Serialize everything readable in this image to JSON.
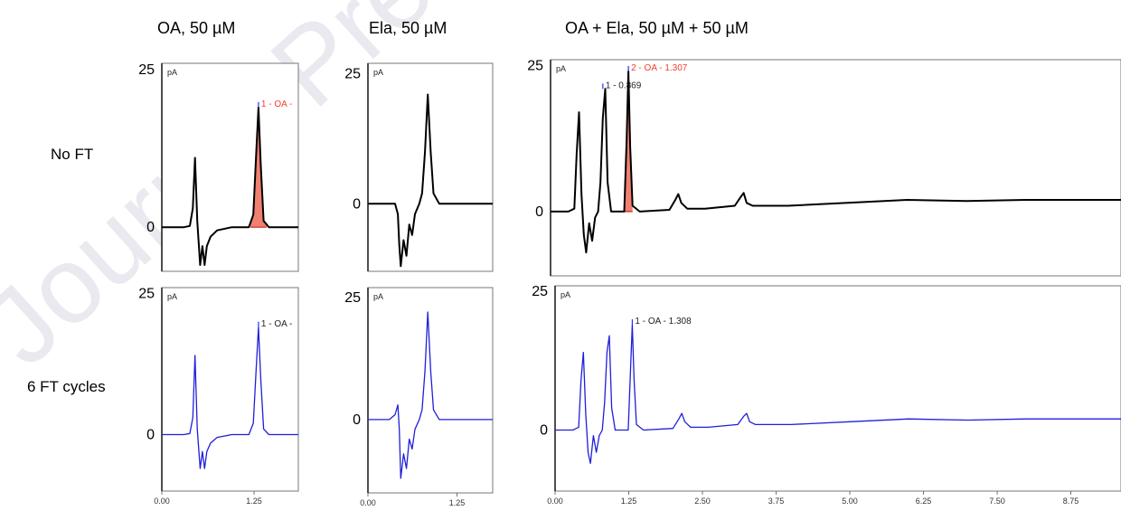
{
  "column_titles": [
    "OA, 50 µM",
    "Ela, 50 µM",
    "OA + Ela, 50 µM + 50 µM"
  ],
  "row_labels": [
    "No FT",
    "6 FT cycles"
  ],
  "watermark": "Journal Pre-proof",
  "colors": {
    "no_ft_trace": "#000000",
    "ft_trace": "#1f1fdb",
    "peak_fill": "#f08070",
    "peak_label_selected": "#f04030",
    "baseline_mark": "#cc2222",
    "marker_tick": "#2233ff"
  },
  "chart_data": [
    {
      "type": "line",
      "panel": "OA, 50 µM / No FT",
      "unit": "pA",
      "ytick_labels": [
        "25",
        "0"
      ],
      "ylim": [
        -7,
        26
      ],
      "xlim": [
        0,
        1.85
      ],
      "series": [
        {
          "x": [
            0.0,
            0.3,
            0.38,
            0.42,
            0.45,
            0.48,
            0.52,
            0.55,
            0.58,
            0.61,
            0.66,
            0.75,
            0.95,
            1.18,
            1.24,
            1.28,
            1.31,
            1.34,
            1.38,
            1.45,
            1.85
          ],
          "y": [
            0,
            0,
            0.2,
            3,
            11,
            1,
            -6,
            -3,
            -6,
            -3,
            -1.5,
            -0.5,
            0,
            0,
            2,
            12,
            19,
            10,
            1,
            0,
            0
          ]
        }
      ],
      "peak_labels": [
        {
          "text": "1 - OA -",
          "x": 1.31,
          "y": 19,
          "selected": true
        }
      ],
      "shaded_peaks": [
        [
          1.2,
          1.42
        ]
      ]
    },
    {
      "type": "line",
      "panel": "Ela, 50 µM / No FT",
      "unit": "pA",
      "ytick_labels": [
        "25",
        "0"
      ],
      "ylim": [
        -13,
        27
      ],
      "xlim": [
        0,
        1.75
      ],
      "series": [
        {
          "x": [
            0.0,
            0.3,
            0.38,
            0.42,
            0.44,
            0.46,
            0.5,
            0.54,
            0.58,
            0.62,
            0.66,
            0.72,
            0.76,
            0.8,
            0.84,
            0.88,
            0.92,
            1.0,
            1.2,
            1.75
          ],
          "y": [
            0,
            0,
            0,
            -2,
            -8,
            -12,
            -7,
            -10,
            -4,
            -6,
            -2,
            0,
            2,
            10,
            21,
            10,
            2,
            0,
            0,
            0
          ]
        }
      ],
      "peak_labels": [],
      "shaded_peaks": []
    },
    {
      "type": "line",
      "panel": "OA + Ela, 50 µM + 50 µM / No FT",
      "unit": "pA",
      "ytick_labels": [
        "25",
        "0"
      ],
      "ylim": [
        -11,
        26
      ],
      "xlim": [
        0,
        9.6
      ],
      "series": [
        {
          "x": [
            0.0,
            0.3,
            0.4,
            0.44,
            0.48,
            0.52,
            0.56,
            0.6,
            0.65,
            0.7,
            0.75,
            0.8,
            0.84,
            0.88,
            0.92,
            0.96,
            1.02,
            1.12,
            1.24,
            1.28,
            1.31,
            1.34,
            1.38,
            1.5,
            2.0,
            2.1,
            2.15,
            2.2,
            2.3,
            2.6,
            3.1,
            3.2,
            3.25,
            3.3,
            3.4,
            4.0,
            5.0,
            6.0,
            7.0,
            8.0,
            9.6
          ],
          "y": [
            0,
            0,
            0.5,
            10,
            17,
            3,
            -4,
            -7,
            -2,
            -5,
            -1,
            0,
            5,
            16,
            21,
            5,
            0,
            0,
            0,
            12,
            24,
            11,
            1,
            0,
            0.3,
            2,
            3,
            1.5,
            0.5,
            0.5,
            1,
            2.5,
            3.2,
            1.5,
            1,
            1,
            1.5,
            2,
            1.8,
            2,
            2
          ]
        }
      ],
      "peak_labels": [
        {
          "text": "1 - 0.869",
          "x": 0.88,
          "y": 21,
          "selected": false
        },
        {
          "text": "2 - OA - 1.307",
          "x": 1.31,
          "y": 24,
          "selected": true
        }
      ],
      "shaded_peaks": [
        [
          1.24,
          1.38
        ]
      ]
    },
    {
      "type": "line",
      "panel": "OA, 50 µM / 6 FT cycles",
      "unit": "pA",
      "ytick_labels": [
        "25",
        "0"
      ],
      "ylim": [
        -10,
        26
      ],
      "xtick_labels": [
        "0.00",
        "1.25"
      ],
      "xlim": [
        0,
        1.85
      ],
      "series": [
        {
          "x": [
            0.0,
            0.3,
            0.38,
            0.42,
            0.45,
            0.48,
            0.52,
            0.55,
            0.58,
            0.61,
            0.66,
            0.75,
            0.95,
            1.18,
            1.24,
            1.28,
            1.31,
            1.34,
            1.38,
            1.45,
            1.85
          ],
          "y": [
            0,
            0,
            0.2,
            3,
            14,
            1,
            -6,
            -3,
            -6,
            -3,
            -1.5,
            -0.5,
            0,
            0,
            2,
            12,
            19,
            10,
            1,
            0,
            0
          ]
        }
      ],
      "peak_labels": [
        {
          "text": "1 - OA -",
          "x": 1.31,
          "y": 19,
          "selected": false
        }
      ],
      "shaded_peaks": []
    },
    {
      "type": "line",
      "panel": "Ela, 50 µM / 6 FT cycles",
      "unit": "pA",
      "ytick_labels": [
        "25",
        "0"
      ],
      "ylim": [
        -15,
        27
      ],
      "xtick_labels": [
        "0.00",
        "1.25"
      ],
      "xlim": [
        0,
        1.75
      ],
      "series": [
        {
          "x": [
            0.0,
            0.3,
            0.38,
            0.42,
            0.44,
            0.46,
            0.5,
            0.54,
            0.58,
            0.62,
            0.66,
            0.72,
            0.76,
            0.8,
            0.84,
            0.88,
            0.92,
            1.0,
            1.2,
            1.75
          ],
          "y": [
            0,
            0,
            1,
            3,
            -2,
            -12,
            -7,
            -10,
            -4,
            -6,
            -2,
            0,
            2,
            10,
            22,
            10,
            2,
            0,
            0,
            0
          ]
        }
      ],
      "peak_labels": [],
      "shaded_peaks": []
    },
    {
      "type": "line",
      "panel": "OA + Ela, 50 µM + 50 µM / 6 FT cycles",
      "unit": "pA",
      "ytick_labels": [
        "25",
        "0"
      ],
      "ylim": [
        -11,
        26
      ],
      "xtick_labels": [
        "0.00",
        "1.25",
        "2.50",
        "3.75",
        "5.00",
        "6.25",
        "7.50",
        "8.75"
      ],
      "xlim": [
        0,
        9.6
      ],
      "series": [
        {
          "x": [
            0.0,
            0.3,
            0.4,
            0.44,
            0.48,
            0.52,
            0.56,
            0.6,
            0.65,
            0.7,
            0.75,
            0.8,
            0.84,
            0.88,
            0.92,
            0.96,
            1.02,
            1.12,
            1.24,
            1.28,
            1.31,
            1.34,
            1.38,
            1.5,
            2.0,
            2.1,
            2.15,
            2.2,
            2.3,
            2.6,
            3.1,
            3.2,
            3.25,
            3.3,
            3.4,
            4.0,
            5.0,
            6.0,
            7.0,
            8.0,
            9.6
          ],
          "y": [
            0,
            0,
            0.5,
            9,
            14,
            3,
            -4,
            -6,
            -1,
            -4,
            -1,
            0,
            5,
            14,
            17,
            4,
            0,
            0,
            0,
            11,
            19,
            9,
            1,
            0,
            0.3,
            2,
            3,
            1.5,
            0.5,
            0.5,
            1,
            2.5,
            3,
            1.5,
            1,
            1,
            1.5,
            2,
            1.8,
            2,
            2
          ]
        }
      ],
      "peak_labels": [
        {
          "text": "1 - OA - 1.308",
          "x": 1.31,
          "y": 19,
          "selected": false
        }
      ],
      "shaded_peaks": []
    }
  ]
}
